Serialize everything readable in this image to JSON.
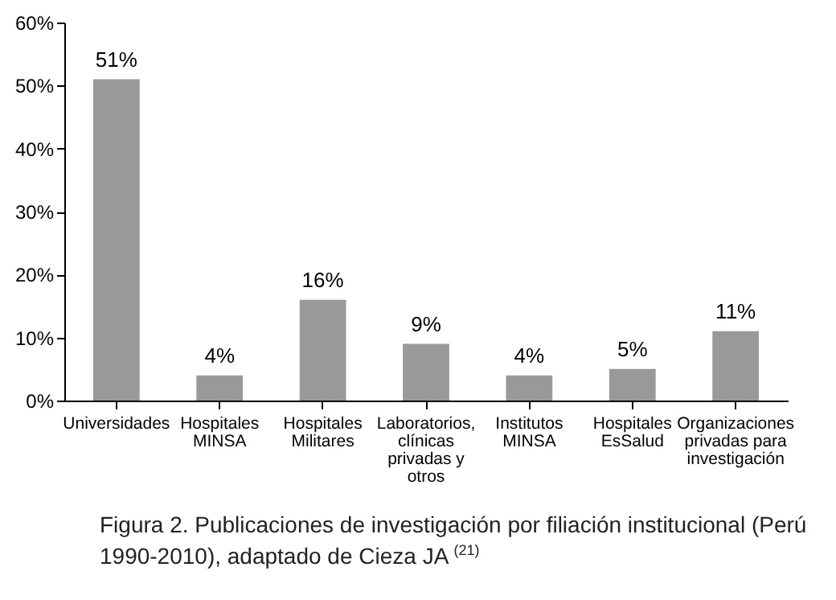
{
  "chart_data": {
    "type": "bar",
    "title": "Figura 2. Publicaciones de investigación por filiación institucional (Perú 1990-2010), adaptado de Cieza JA $^{(21)}$",
    "categories": [
      "Universidades",
      "Hospitales MINSA",
      "Hospitales Militares",
      "Laboratorios, clínicas privadas y otros",
      "Institutos MINSA",
      "Hospitales EsSalud",
      "Organizaciones privadas para investigación"
    ],
    "values": [
      51,
      4,
      16,
      9,
      4,
      5,
      11
    ],
    "color": "#999999",
    "value_labels": [
      "51%",
      "4%",
      "16%",
      "9%",
      "4%",
      "5%",
      "11%"
    ],
    "ylim": [
      0,
      60
    ],
    "yticks": [
      {
        "value": 0,
        "label": "0%"
      },
      {
        "value": 10,
        "label": "10%"
      },
      {
        "value": 20,
        "label": "20%"
      },
      {
        "value": 30,
        "label": "30%"
      },
      {
        "value": 40,
        "label": "40%"
      },
      {
        "value": 50,
        "label": "50%"
      },
      {
        "value": 60,
        "label": "60%"
      }
    ],
    "grid": false
  }
}
